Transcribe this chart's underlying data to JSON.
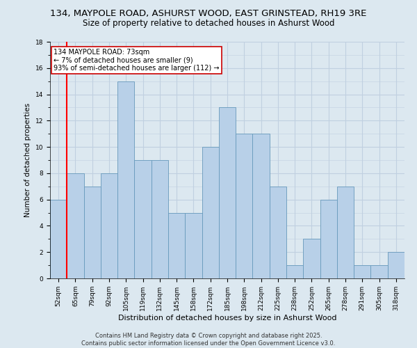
{
  "title_line1": "134, MAYPOLE ROAD, ASHURST WOOD, EAST GRINSTEAD, RH19 3RE",
  "title_line2": "Size of property relative to detached houses in Ashurst Wood",
  "xlabel": "Distribution of detached houses by size in Ashurst Wood",
  "ylabel": "Number of detached properties",
  "categories": [
    "52sqm",
    "65sqm",
    "79sqm",
    "92sqm",
    "105sqm",
    "119sqm",
    "132sqm",
    "145sqm",
    "158sqm",
    "172sqm",
    "185sqm",
    "198sqm",
    "212sqm",
    "225sqm",
    "238sqm",
    "252sqm",
    "265sqm",
    "278sqm",
    "291sqm",
    "305sqm",
    "318sqm"
  ],
  "bar_heights": [
    6,
    8,
    7,
    8,
    15,
    9,
    9,
    5,
    5,
    10,
    13,
    11,
    11,
    7,
    1,
    3,
    6,
    7,
    1,
    1,
    2
  ],
  "red_line_x": 0.5,
  "ylim": [
    0,
    18
  ],
  "yticks": [
    0,
    2,
    4,
    6,
    8,
    10,
    12,
    14,
    16,
    18
  ],
  "bar_color": "#b8d0e8",
  "bar_edge_color": "#6699bb",
  "grid_color": "#c0d0e0",
  "background_color": "#dce8f0",
  "annotation_text": "134 MAYPOLE ROAD: 73sqm\n← 7% of detached houses are smaller (9)\n93% of semi-detached houses are larger (112) →",
  "annotation_box_facecolor": "#ffffff",
  "annotation_box_edgecolor": "#cc0000",
  "footer_text": "Contains HM Land Registry data © Crown copyright and database right 2025.\nContains public sector information licensed under the Open Government Licence v3.0.",
  "title_fontsize": 9.5,
  "subtitle_fontsize": 8.5,
  "xlabel_fontsize": 8,
  "ylabel_fontsize": 7.5,
  "tick_fontsize": 6.5,
  "annotation_fontsize": 7,
  "footer_fontsize": 6
}
